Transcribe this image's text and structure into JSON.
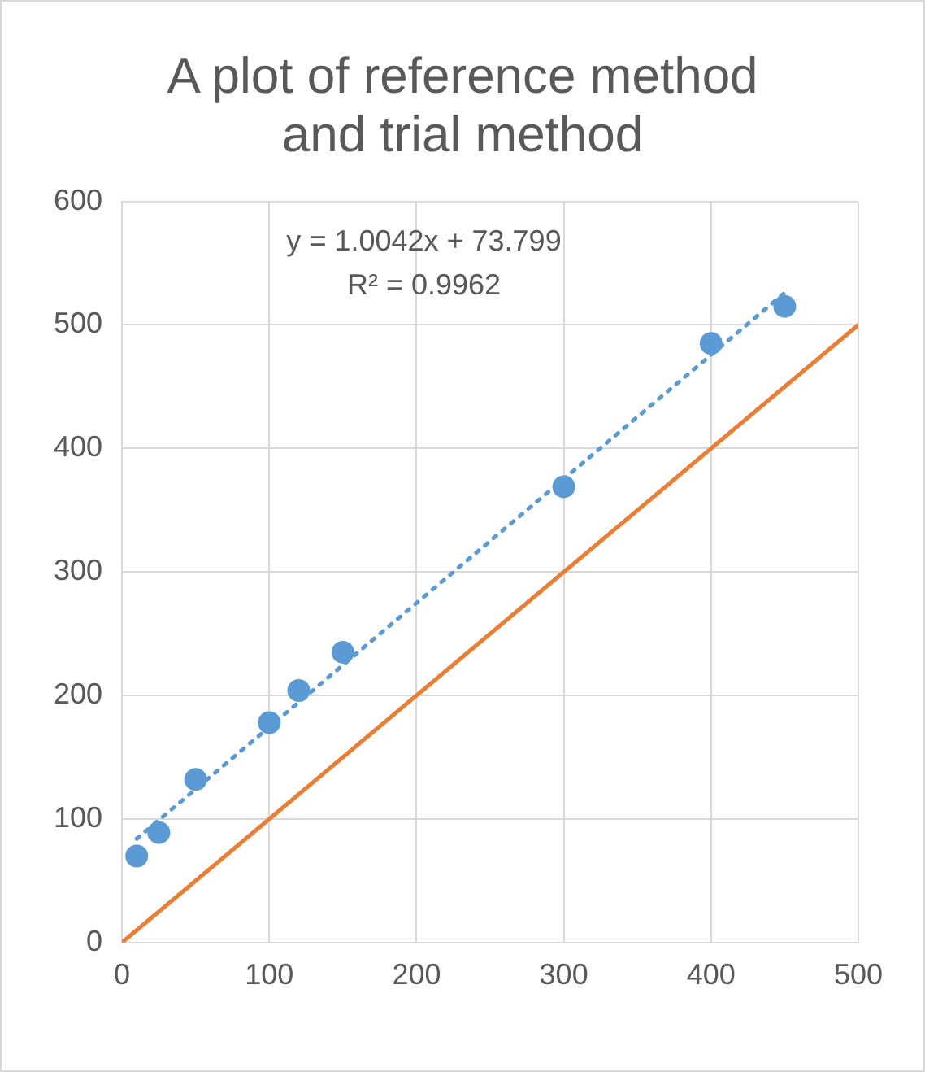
{
  "chart_data": {
    "type": "scatter",
    "title": "A plot of reference method and trial method",
    "series": [
      {
        "type": "scatter",
        "color": "#5b9bd5",
        "marker": "circle",
        "x": [
          10,
          25,
          50,
          100,
          120,
          150,
          300,
          400,
          450
        ],
        "values": [
          70,
          89,
          132,
          178,
          204,
          235,
          369,
          485,
          515
        ]
      },
      {
        "type": "line",
        "color": "#5b9bd5",
        "line_style": "dotted",
        "marker": "none",
        "x": [
          10,
          450
        ],
        "values": [
          84,
          526
        ]
      },
      {
        "type": "line",
        "color": "#ed7d31",
        "line_style": "solid",
        "marker": "none",
        "x": [
          0,
          500
        ],
        "values": [
          0,
          500
        ]
      }
    ],
    "annotations": [
      "y = 1.0042x + 73.799",
      "R² = 0.9962"
    ],
    "xlim": [
      0,
      500
    ],
    "xticks": [
      0,
      100,
      200,
      300,
      400,
      500
    ],
    "ylim": [
      0,
      600
    ],
    "yticks": [
      0,
      100,
      200,
      300,
      400,
      500,
      600
    ],
    "grid": true
  }
}
